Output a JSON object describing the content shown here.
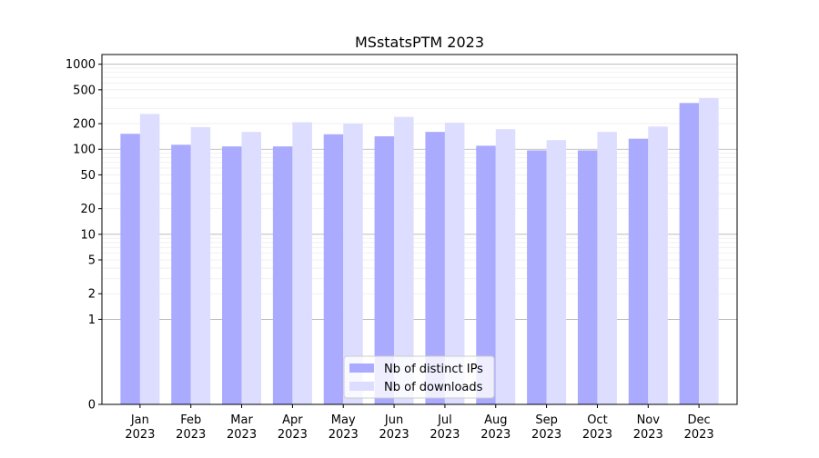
{
  "chart_data": {
    "type": "bar",
    "title": "MSstatsPTM 2023",
    "xlabel": "",
    "ylabel": "",
    "yscale": "symlog",
    "ylim": [
      0,
      1300
    ],
    "yticks": [
      0,
      1,
      2,
      5,
      10,
      20,
      50,
      100,
      200,
      500,
      1000
    ],
    "grid": true,
    "legend_position": "bottom-center",
    "categories": [
      [
        "Jan",
        "2023"
      ],
      [
        "Feb",
        "2023"
      ],
      [
        "Mar",
        "2023"
      ],
      [
        "Apr",
        "2023"
      ],
      [
        "May",
        "2023"
      ],
      [
        "Jun",
        "2023"
      ],
      [
        "Jul",
        "2023"
      ],
      [
        "Aug",
        "2023"
      ],
      [
        "Sep",
        "2023"
      ],
      [
        "Oct",
        "2023"
      ],
      [
        "Nov",
        "2023"
      ],
      [
        "Dec",
        "2023"
      ]
    ],
    "series": [
      {
        "name": "Nb of distinct IPs",
        "color": "#aaaaff",
        "values": [
          152,
          113,
          108,
          108,
          150,
          142,
          160,
          110,
          97,
          97,
          133,
          350
        ]
      },
      {
        "name": "Nb of downloads",
        "color": "#ddddff",
        "values": [
          260,
          182,
          160,
          208,
          200,
          240,
          205,
          172,
          128,
          160,
          185,
          400
        ]
      }
    ]
  }
}
